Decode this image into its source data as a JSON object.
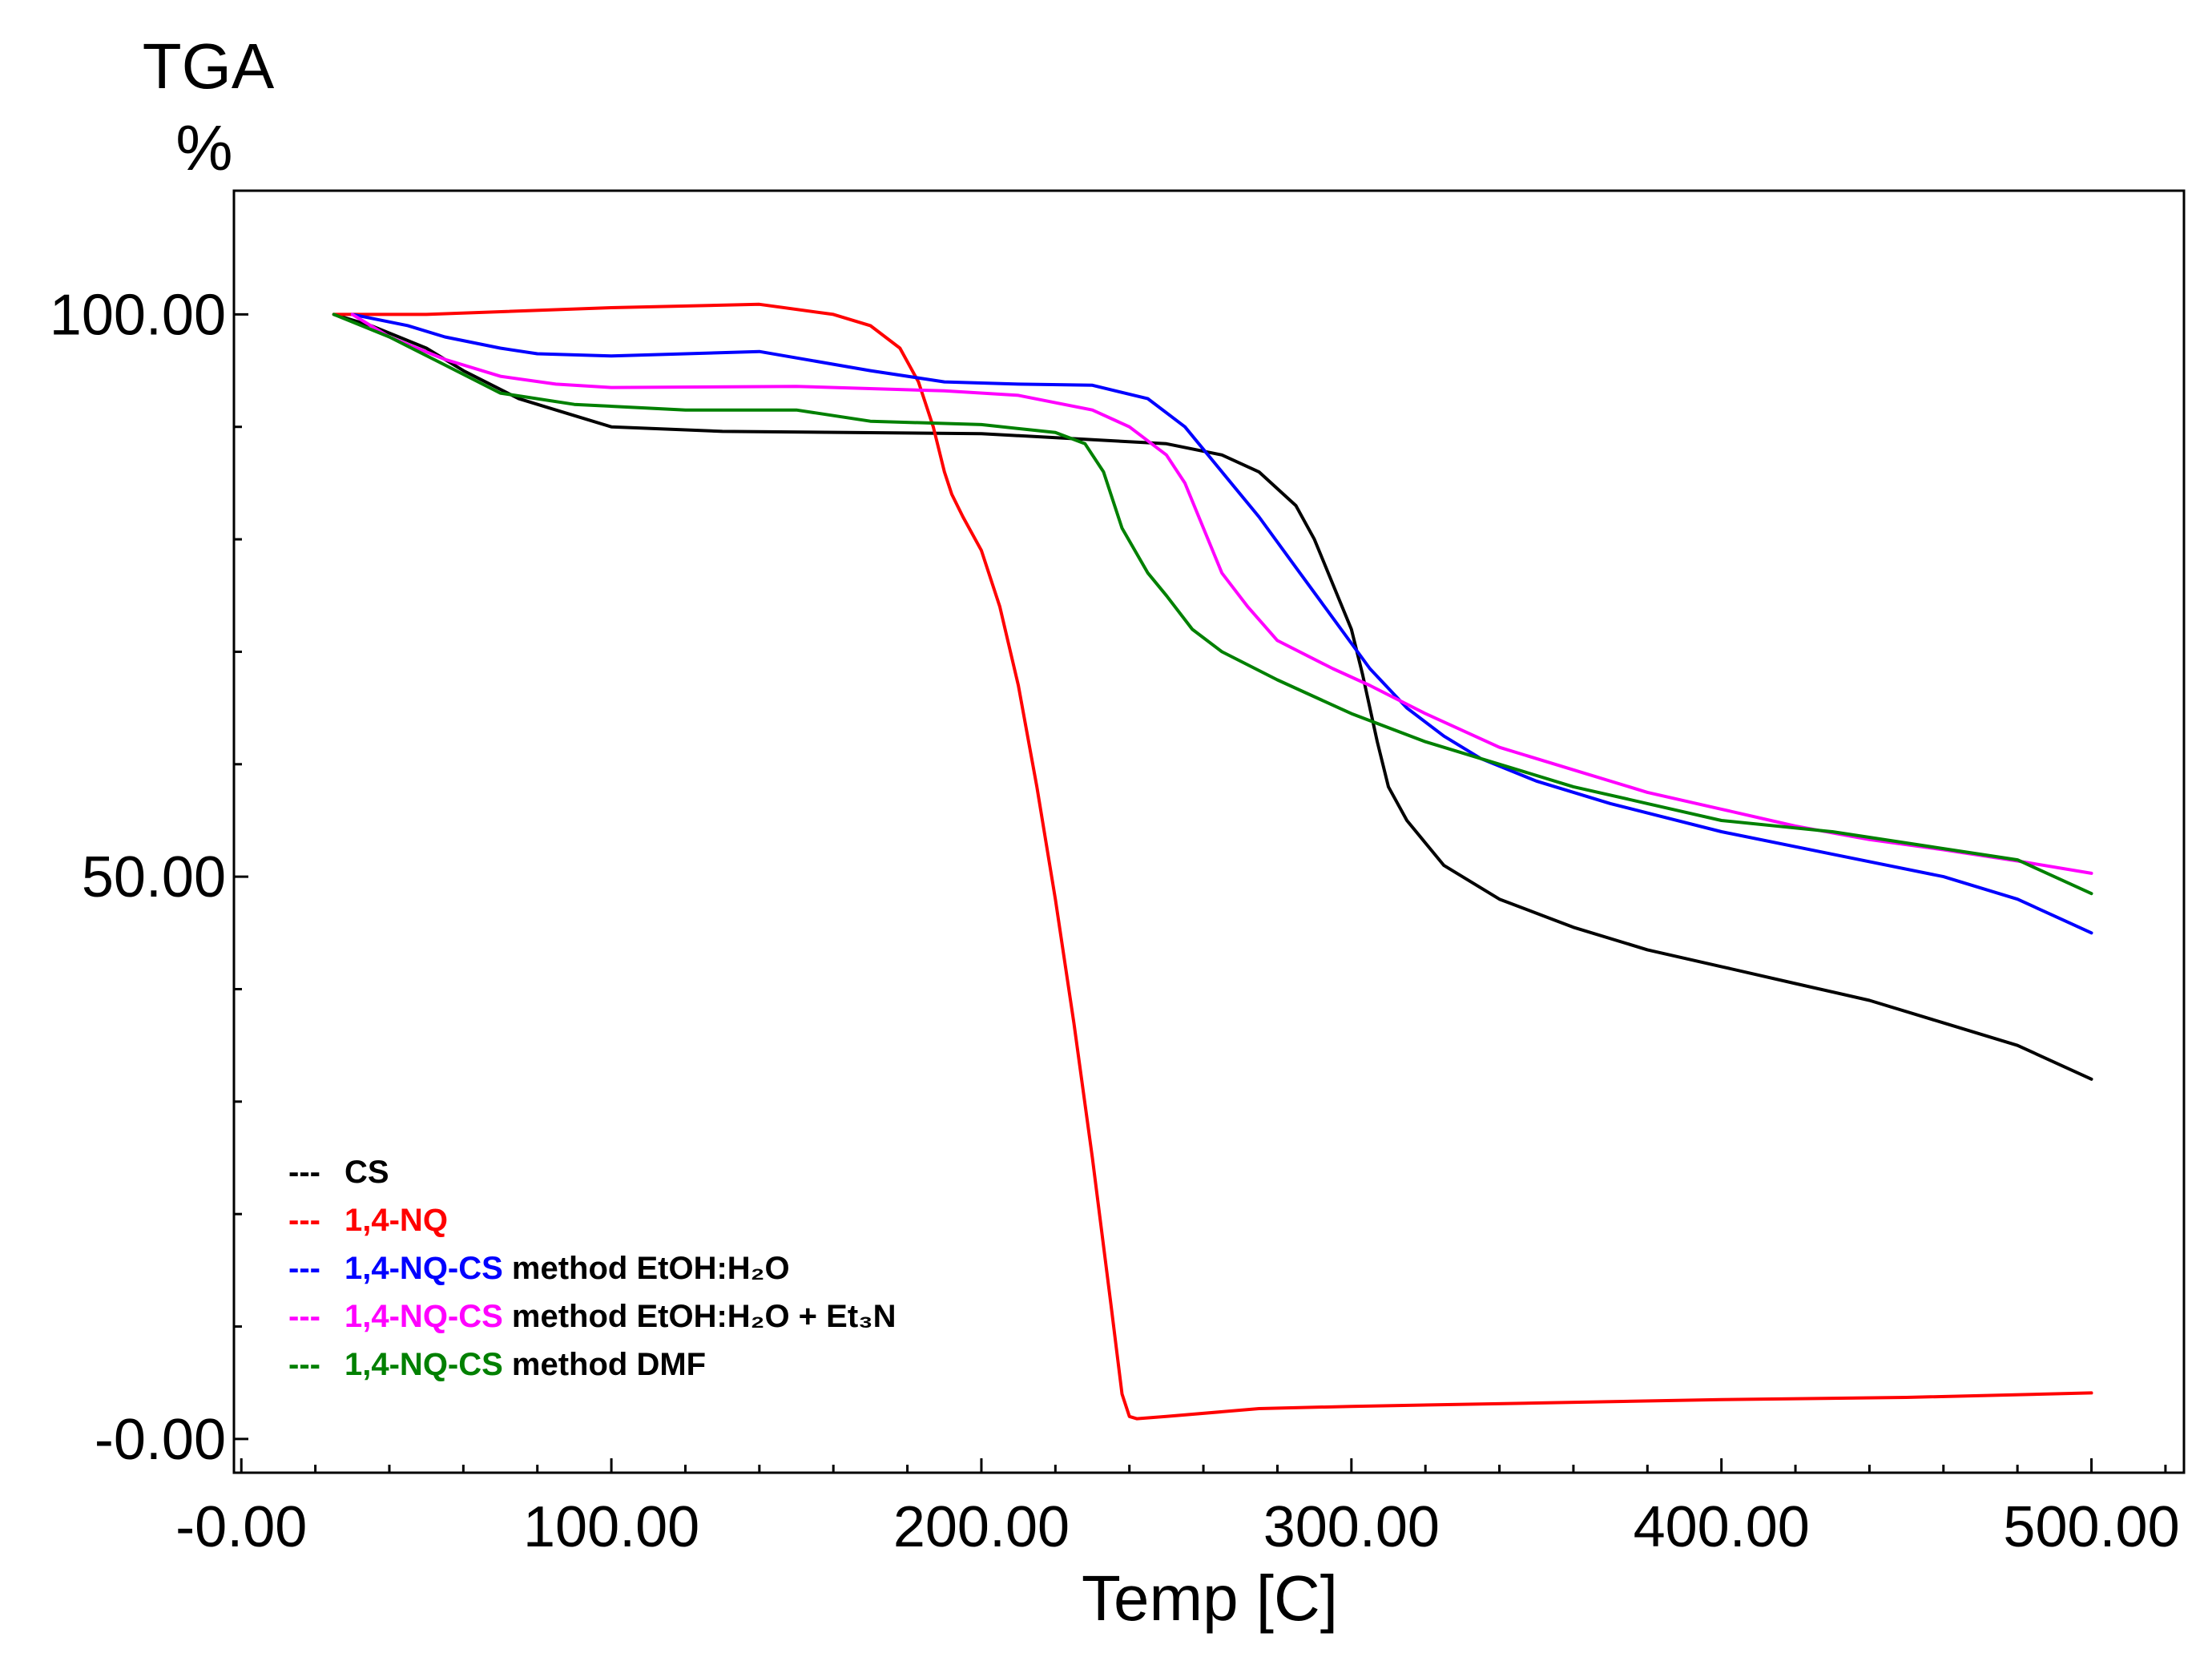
{
  "chart_data": {
    "type": "line",
    "title": "",
    "ylabel_top": "TGA",
    "ylabel_unit": "%",
    "xlabel": "Temp  [C]",
    "xlim": [
      -2,
      525
    ],
    "ylim": [
      -3,
      111
    ],
    "xticks": [
      0,
      100,
      200,
      300,
      400,
      500
    ],
    "xtick_labels": [
      "-0.00",
      "100.00",
      "200.00",
      "300.00",
      "400.00",
      "500.00"
    ],
    "yticks": [
      0,
      50,
      100
    ],
    "ytick_labels": [
      "-0.00",
      "50.00",
      "100.00"
    ],
    "series": [
      {
        "key": "cs",
        "name": "CS",
        "color": "#000000",
        "points": [
          [
            25,
            100
          ],
          [
            35,
            99
          ],
          [
            50,
            97
          ],
          [
            60,
            95
          ],
          [
            75,
            92.5
          ],
          [
            90,
            91
          ],
          [
            100,
            90
          ],
          [
            130,
            89.6
          ],
          [
            200,
            89.4
          ],
          [
            250,
            88.5
          ],
          [
            265,
            87.5
          ],
          [
            275,
            86
          ],
          [
            285,
            83
          ],
          [
            290,
            80
          ],
          [
            295,
            76
          ],
          [
            300,
            72
          ],
          [
            303,
            68
          ],
          [
            307,
            62
          ],
          [
            310,
            58
          ],
          [
            315,
            55
          ],
          [
            325,
            51
          ],
          [
            340,
            48
          ],
          [
            360,
            45.5
          ],
          [
            380,
            43.5
          ],
          [
            400,
            42
          ],
          [
            420,
            40.5
          ],
          [
            440,
            39
          ],
          [
            460,
            37
          ],
          [
            480,
            35
          ],
          [
            500,
            32
          ]
        ]
      },
      {
        "key": "nq",
        "name": "1,4-NQ",
        "color": "#ff0000",
        "points": [
          [
            25,
            100
          ],
          [
            50,
            100
          ],
          [
            100,
            100.6
          ],
          [
            140,
            100.9
          ],
          [
            160,
            100
          ],
          [
            170,
            99
          ],
          [
            178,
            97
          ],
          [
            183,
            94
          ],
          [
            187,
            90
          ],
          [
            190,
            86
          ],
          [
            192,
            84
          ],
          [
            195,
            82
          ],
          [
            200,
            79
          ],
          [
            205,
            74
          ],
          [
            210,
            67
          ],
          [
            215,
            58
          ],
          [
            220,
            48
          ],
          [
            225,
            37
          ],
          [
            230,
            25
          ],
          [
            235,
            12
          ],
          [
            238,
            4
          ],
          [
            240,
            2
          ],
          [
            242,
            1.8
          ],
          [
            250,
            2
          ],
          [
            275,
            2.7
          ],
          [
            300,
            2.9
          ],
          [
            350,
            3.2
          ],
          [
            400,
            3.5
          ],
          [
            450,
            3.7
          ],
          [
            500,
            4.1
          ]
        ]
      },
      {
        "key": "nqcs_etoh",
        "name": "1,4-NQ-CS method EtOH:H₂O",
        "color": "#0000ff",
        "points": [
          [
            30,
            100
          ],
          [
            45,
            99
          ],
          [
            55,
            98
          ],
          [
            70,
            97
          ],
          [
            80,
            96.5
          ],
          [
            100,
            96.3
          ],
          [
            140,
            96.7
          ],
          [
            170,
            95
          ],
          [
            190,
            94
          ],
          [
            210,
            93.8
          ],
          [
            230,
            93.7
          ],
          [
            245,
            92.5
          ],
          [
            255,
            90
          ],
          [
            265,
            86
          ],
          [
            275,
            82
          ],
          [
            285,
            77.5
          ],
          [
            295,
            73
          ],
          [
            305,
            68.5
          ],
          [
            315,
            65
          ],
          [
            325,
            62.5
          ],
          [
            335,
            60.5
          ],
          [
            350,
            58.5
          ],
          [
            370,
            56.5
          ],
          [
            400,
            54
          ],
          [
            430,
            52
          ],
          [
            460,
            50
          ],
          [
            480,
            48
          ],
          [
            500,
            45
          ]
        ]
      },
      {
        "key": "nqcs_et3n",
        "name": "1,4-NQ-CS method EtOH:H₂O + Et₃N",
        "color": "#ff00ff",
        "points": [
          [
            30,
            100
          ],
          [
            40,
            98
          ],
          [
            55,
            96
          ],
          [
            70,
            94.5
          ],
          [
            85,
            93.8
          ],
          [
            100,
            93.5
          ],
          [
            150,
            93.6
          ],
          [
            190,
            93.2
          ],
          [
            210,
            92.8
          ],
          [
            230,
            91.5
          ],
          [
            240,
            90
          ],
          [
            250,
            87.5
          ],
          [
            255,
            85
          ],
          [
            260,
            81
          ],
          [
            265,
            77
          ],
          [
            272,
            74
          ],
          [
            280,
            71
          ],
          [
            295,
            68.5
          ],
          [
            305,
            67
          ],
          [
            320,
            64.5
          ],
          [
            340,
            61.5
          ],
          [
            360,
            59.5
          ],
          [
            380,
            57.5
          ],
          [
            400,
            56
          ],
          [
            420,
            54.5
          ],
          [
            440,
            53.3
          ],
          [
            460,
            52.4
          ],
          [
            480,
            51.4
          ],
          [
            500,
            50.3
          ]
        ]
      },
      {
        "key": "nqcs_dmf",
        "name": "1,4-NQ-CS method DMF",
        "color": "#008000",
        "points": [
          [
            25,
            100
          ],
          [
            40,
            98
          ],
          [
            55,
            95.5
          ],
          [
            70,
            93
          ],
          [
            90,
            92
          ],
          [
            120,
            91.5
          ],
          [
            150,
            91.5
          ],
          [
            170,
            90.5
          ],
          [
            200,
            90.2
          ],
          [
            220,
            89.5
          ],
          [
            228,
            88.5
          ],
          [
            233,
            86
          ],
          [
            238,
            81
          ],
          [
            245,
            77
          ],
          [
            250,
            75
          ],
          [
            257,
            72
          ],
          [
            265,
            70
          ],
          [
            280,
            67.5
          ],
          [
            300,
            64.5
          ],
          [
            320,
            62
          ],
          [
            340,
            60
          ],
          [
            360,
            58
          ],
          [
            380,
            56.5
          ],
          [
            400,
            55
          ],
          [
            430,
            54
          ],
          [
            460,
            52.5
          ],
          [
            480,
            51.5
          ],
          [
            500,
            48.5
          ]
        ]
      }
    ],
    "legend": {
      "position": "bottom-left",
      "entries": [
        {
          "key": "cs",
          "marker": "---",
          "colored_part": "CS",
          "rest": "",
          "color": "#000000"
        },
        {
          "key": "nq",
          "marker": "---",
          "colored_part": "1,4-NQ",
          "rest": "",
          "color": "#ff0000"
        },
        {
          "key": "nqcs_etoh",
          "marker": "---",
          "colored_part": "1,4-NQ-CS",
          "rest": " method EtOH:H₂O",
          "color": "#0000ff"
        },
        {
          "key": "nqcs_et3n",
          "marker": "---",
          "colored_part": "1,4-NQ-CS",
          "rest": " method EtOH:H₂O + Et₃N",
          "color": "#ff00ff"
        },
        {
          "key": "nqcs_dmf",
          "marker": "---",
          "colored_part": "1,4-NQ-CS",
          "rest": " method DMF",
          "color": "#008000"
        }
      ]
    }
  }
}
